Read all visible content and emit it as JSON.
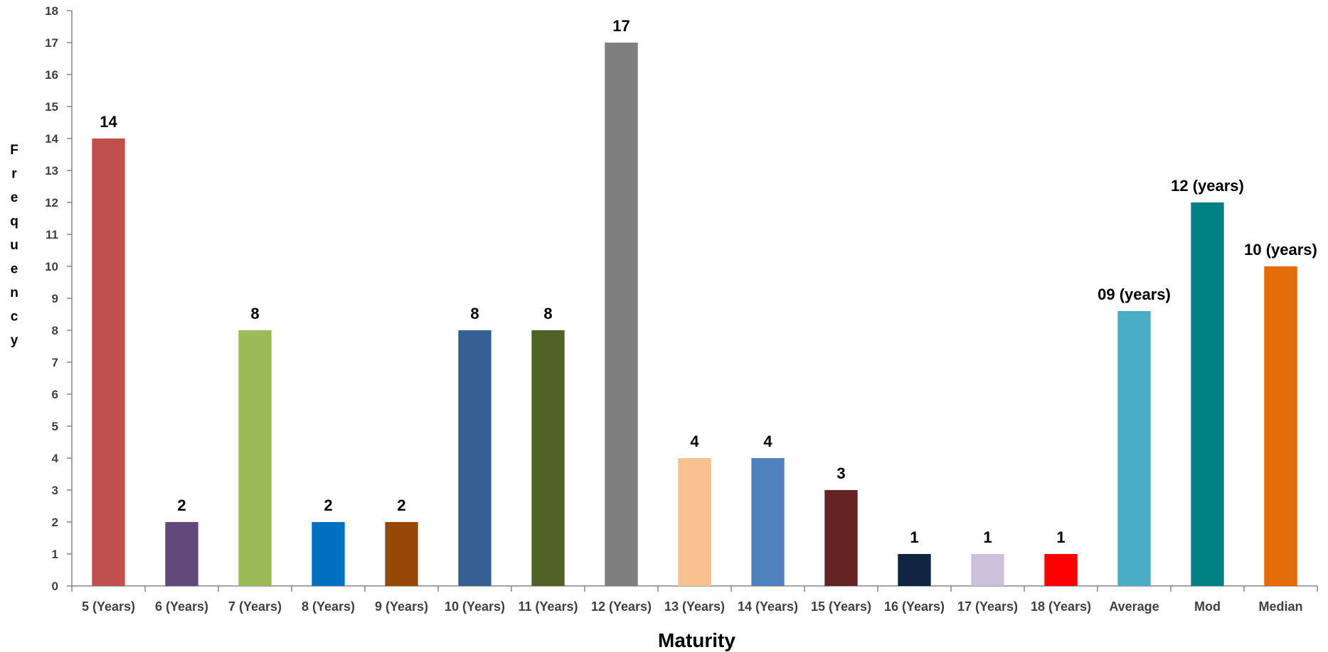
{
  "chart_data": {
    "type": "bar",
    "xlabel": "Maturity",
    "ylabel": "Frequency",
    "ylim": [
      0,
      18
    ],
    "yticks": [
      "0",
      "1",
      "2",
      "3",
      "4",
      "5",
      "6",
      "7",
      "8",
      "9",
      "10",
      "11",
      "12",
      "13",
      "14",
      "15",
      "16",
      "17",
      "18"
    ],
    "grid": false,
    "legend": "none",
    "categories": [
      "5 (Years)",
      "6 (Years)",
      "7 (Years)",
      "8 (Years)",
      "9 (Years)",
      "10 (Years)",
      "11 (Years)",
      "12 (Years)",
      "13 (Years)",
      "14 (Years)",
      "15 (Years)",
      "16 (Years)",
      "17 (Years)",
      "18 (Years)",
      "Average",
      "Mod",
      "Median"
    ],
    "values": [
      14,
      2,
      8,
      2,
      2,
      8,
      8,
      17,
      4,
      4,
      3,
      1,
      1,
      1,
      8.6,
      12,
      10
    ],
    "data_labels": [
      "14",
      "2",
      "8",
      "2",
      "2",
      "8",
      "8",
      "17",
      "4",
      "4",
      "3",
      "1",
      "1",
      "1",
      "09 (years)",
      "12 (years)",
      "10 (years)"
    ],
    "colors": [
      "#c0504d",
      "#604a7b",
      "#9bbb59",
      "#0070c0",
      "#974806",
      "#366092",
      "#4f6228",
      "#7f7f7f",
      "#fac090",
      "#4f81bd",
      "#632423",
      "#10253f",
      "#ccc1da",
      "#ff0000",
      "#4bacc6",
      "#008080",
      "#e36c09"
    ]
  }
}
